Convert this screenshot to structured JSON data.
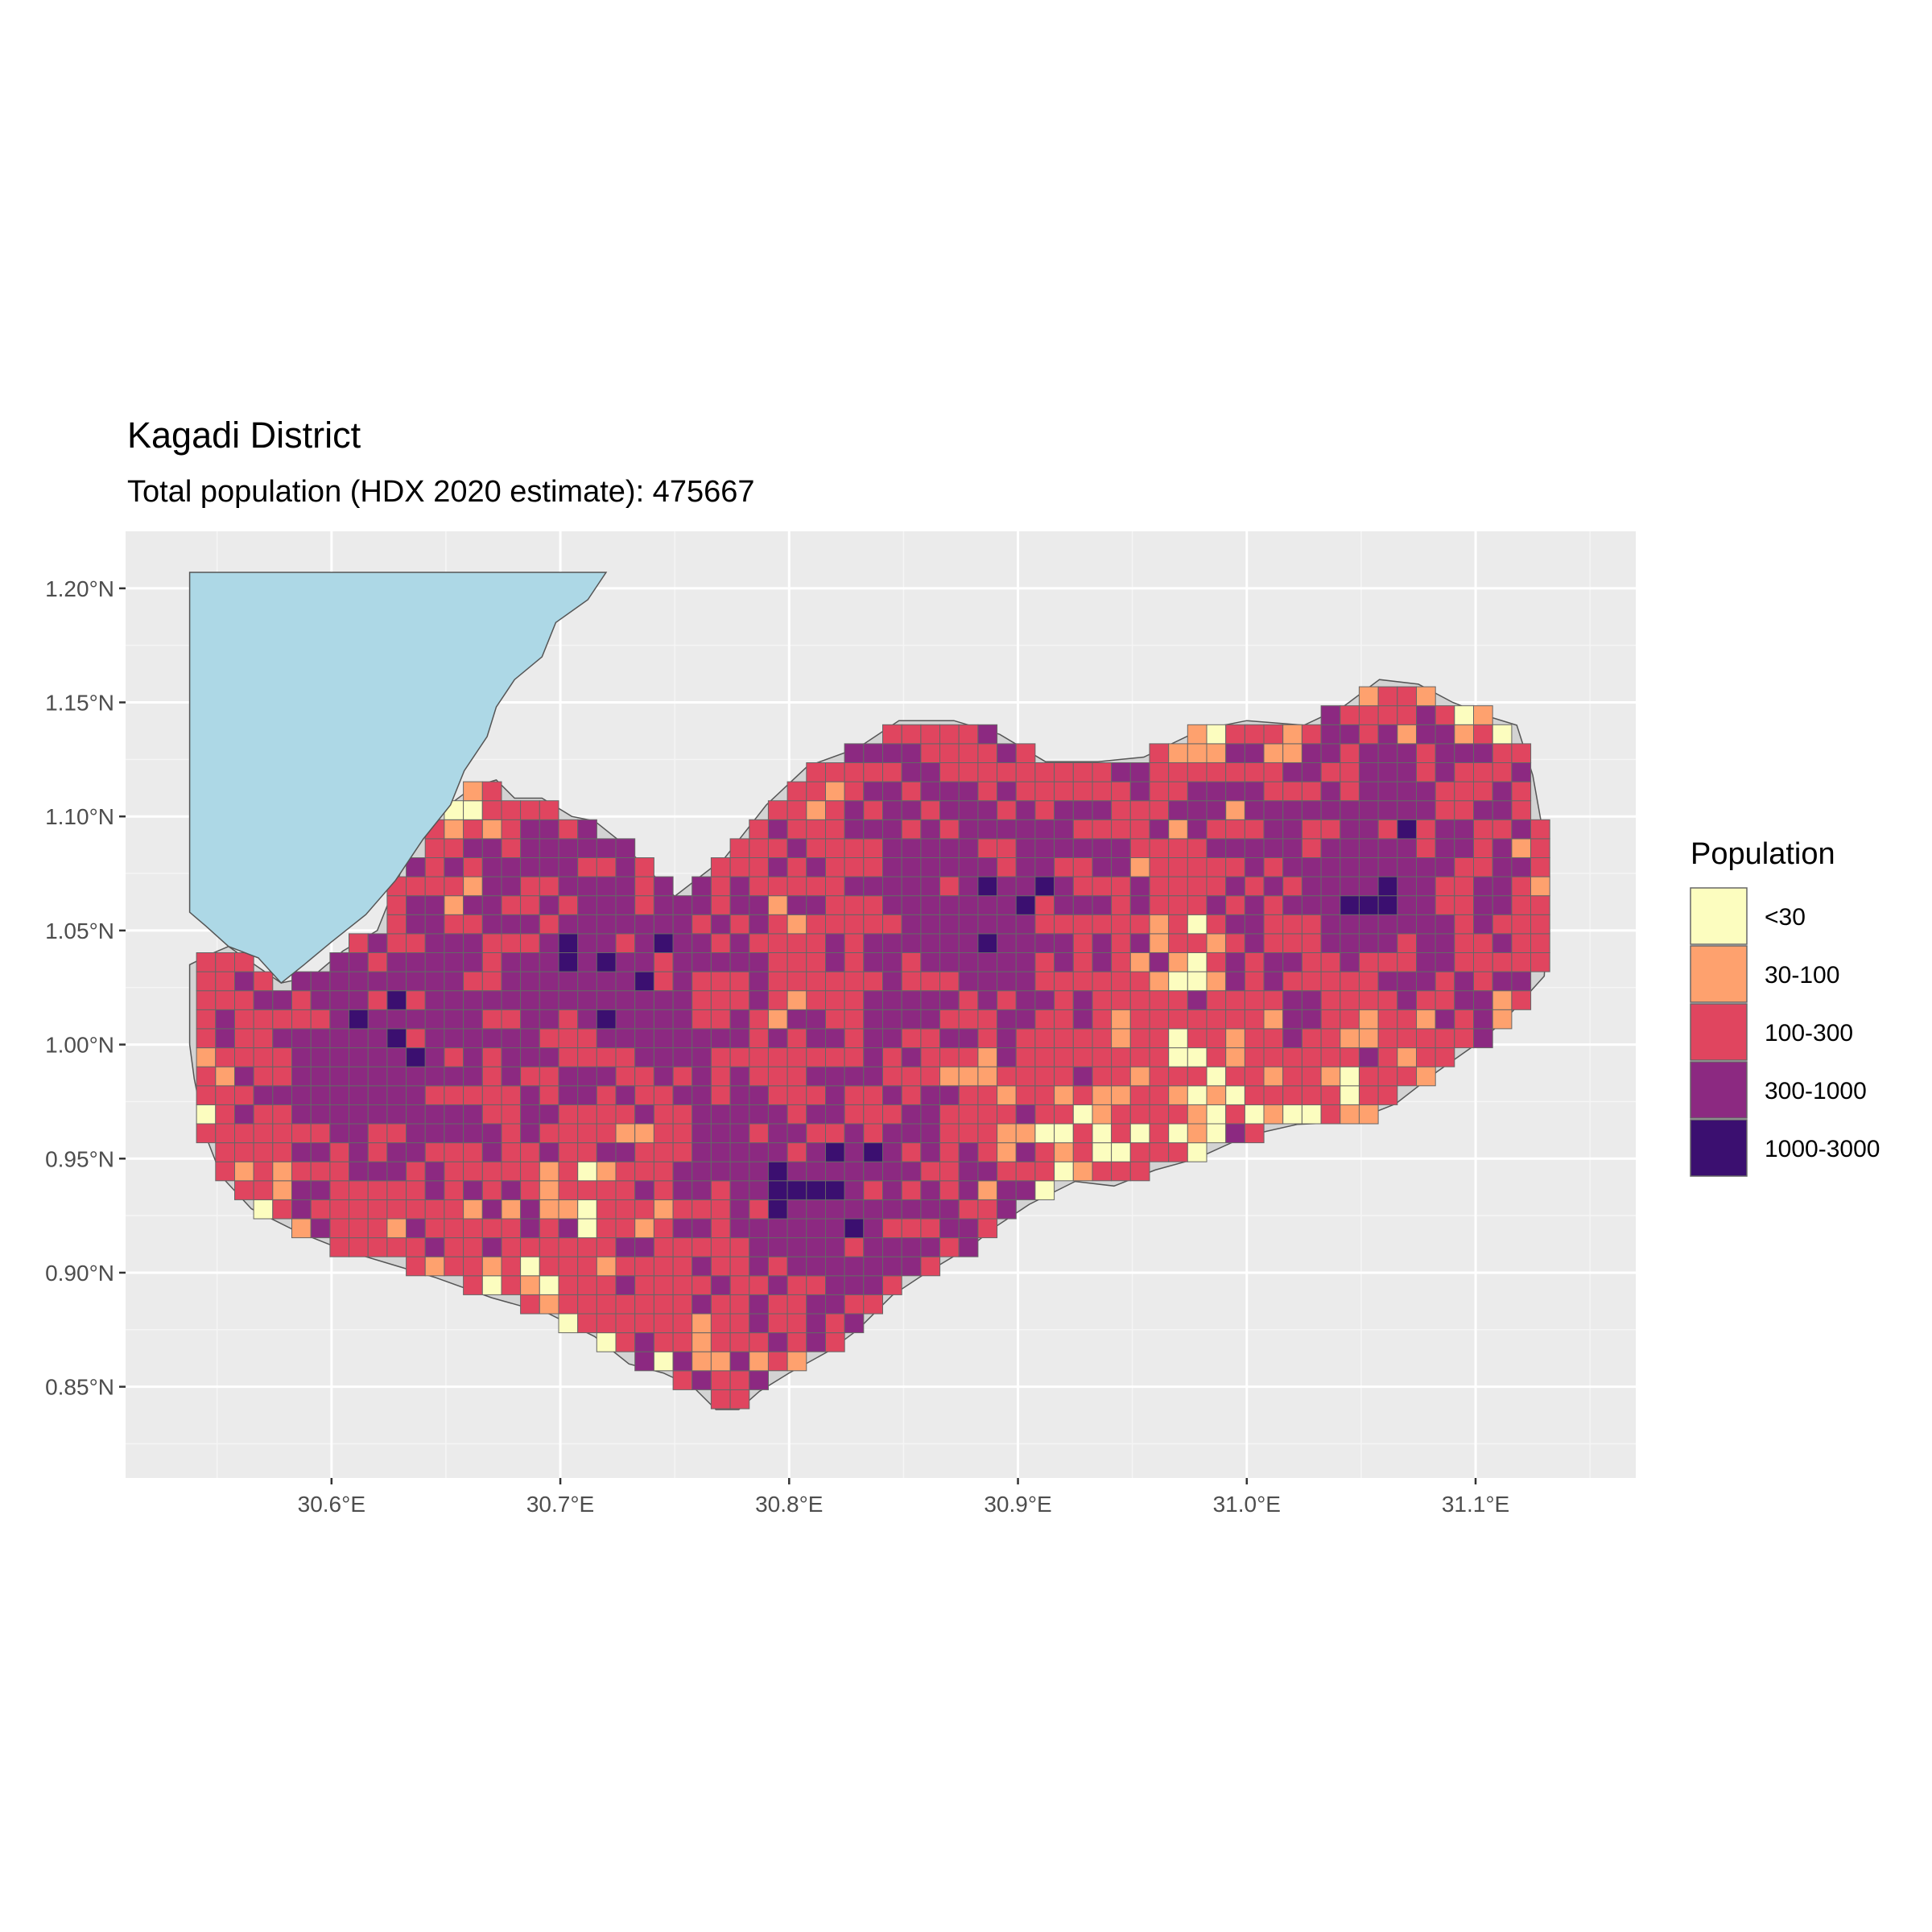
{
  "title": "Kagadi District",
  "subtitle": "Total population (HDX 2020 estimate): 475667",
  "chart_data": {
    "type": "heatmap",
    "x_ticks": [
      "30.6°E",
      "30.7°E",
      "30.8°E",
      "30.9°E",
      "31.0°E",
      "31.1°E"
    ],
    "y_ticks": [
      "1.20°N",
      "1.15°N",
      "1.10°N",
      "1.05°N",
      "1.00°N",
      "0.95°N",
      "0.90°N",
      "0.85°N"
    ],
    "x_tick_values": [
      30.6,
      30.7,
      30.8,
      30.9,
      31.0,
      31.1
    ],
    "y_tick_values": [
      1.2,
      1.15,
      1.1,
      1.05,
      1.0,
      0.95,
      0.9,
      0.85
    ],
    "xlim": [
      30.51,
      31.17
    ],
    "ylim": [
      0.81,
      1.225
    ],
    "grid": true,
    "panel_background": "#ebebeb",
    "district_fill": "#d3d3d3",
    "lake_fill": "#add8e6",
    "cell_size_degrees": 0.00833,
    "legend": {
      "title": "Population",
      "position": "right",
      "classes": [
        {
          "label": "<30",
          "color": "#fcfdbf"
        },
        {
          "label": "30-100",
          "color": "#fea16e"
        },
        {
          "label": "100-300",
          "color": "#e0455f"
        },
        {
          "label": "300-1000",
          "color": "#8c2981"
        },
        {
          "label": "1000-3000",
          "color": "#3b0f70"
        }
      ]
    },
    "district_outline_lonlat": [
      [
        30.538,
        1.017
      ],
      [
        30.538,
        1.035
      ],
      [
        30.548,
        1.04
      ],
      [
        30.555,
        1.043
      ],
      [
        30.565,
        1.036
      ],
      [
        30.578,
        1.027
      ],
      [
        30.592,
        1.03
      ],
      [
        30.605,
        1.041
      ],
      [
        30.62,
        1.05
      ],
      [
        30.63,
        1.075
      ],
      [
        30.64,
        1.093
      ],
      [
        30.65,
        1.104
      ],
      [
        30.662,
        1.113
      ],
      [
        30.672,
        1.116
      ],
      [
        30.68,
        1.108
      ],
      [
        30.692,
        1.108
      ],
      [
        30.705,
        1.1
      ],
      [
        30.715,
        1.098
      ],
      [
        30.725,
        1.09
      ],
      [
        30.735,
        1.08
      ],
      [
        30.75,
        1.065
      ],
      [
        30.772,
        1.082
      ],
      [
        30.79,
        1.105
      ],
      [
        30.808,
        1.122
      ],
      [
        30.83,
        1.13
      ],
      [
        30.848,
        1.142
      ],
      [
        30.872,
        1.142
      ],
      [
        30.892,
        1.136
      ],
      [
        30.912,
        1.124
      ],
      [
        30.935,
        1.124
      ],
      [
        30.955,
        1.126
      ],
      [
        30.98,
        1.138
      ],
      [
        31.0,
        1.142
      ],
      [
        31.025,
        1.14
      ],
      [
        31.042,
        1.148
      ],
      [
        31.058,
        1.16
      ],
      [
        31.075,
        1.158
      ],
      [
        31.09,
        1.15
      ],
      [
        31.105,
        1.144
      ],
      [
        31.118,
        1.14
      ],
      [
        31.125,
        1.118
      ],
      [
        31.13,
        1.09
      ],
      [
        31.132,
        1.06
      ],
      [
        31.13,
        1.03
      ],
      [
        31.112,
        1.01
      ],
      [
        31.1,
        1.0
      ],
      [
        31.083,
        0.988
      ],
      [
        31.065,
        0.974
      ],
      [
        31.045,
        0.966
      ],
      [
        31.022,
        0.965
      ],
      [
        31.0,
        0.96
      ],
      [
        30.978,
        0.95
      ],
      [
        30.96,
        0.945
      ],
      [
        30.942,
        0.938
      ],
      [
        30.925,
        0.94
      ],
      [
        30.905,
        0.93
      ],
      [
        30.89,
        0.92
      ],
      [
        30.88,
        0.912
      ],
      [
        30.86,
        0.9
      ],
      [
        30.845,
        0.89
      ],
      [
        30.83,
        0.875
      ],
      [
        30.818,
        0.866
      ],
      [
        30.8,
        0.856
      ],
      [
        30.787,
        0.848
      ],
      [
        30.778,
        0.84
      ],
      [
        30.768,
        0.84
      ],
      [
        30.758,
        0.85
      ],
      [
        30.745,
        0.856
      ],
      [
        30.73,
        0.86
      ],
      [
        30.715,
        0.872
      ],
      [
        30.695,
        0.882
      ],
      [
        30.67,
        0.889
      ],
      [
        30.645,
        0.898
      ],
      [
        30.625,
        0.904
      ],
      [
        30.605,
        0.91
      ],
      [
        30.585,
        0.918
      ],
      [
        30.565,
        0.928
      ],
      [
        30.552,
        0.942
      ],
      [
        30.545,
        0.96
      ],
      [
        30.54,
        0.985
      ],
      [
        30.538,
        1.0
      ]
    ],
    "lake_outline_lonlat": [
      [
        30.538,
        1.207
      ],
      [
        30.72,
        1.207
      ],
      [
        30.712,
        1.195
      ],
      [
        30.698,
        1.185
      ],
      [
        30.692,
        1.17
      ],
      [
        30.68,
        1.16
      ],
      [
        30.672,
        1.148
      ],
      [
        30.668,
        1.135
      ],
      [
        30.658,
        1.12
      ],
      [
        30.652,
        1.105
      ],
      [
        30.64,
        1.09
      ],
      [
        30.628,
        1.072
      ],
      [
        30.615,
        1.057
      ],
      [
        30.6,
        1.045
      ],
      [
        30.588,
        1.035
      ],
      [
        30.578,
        1.027
      ],
      [
        30.568,
        1.038
      ],
      [
        30.555,
        1.043
      ],
      [
        30.545,
        1.052
      ],
      [
        30.538,
        1.058
      ]
    ]
  }
}
